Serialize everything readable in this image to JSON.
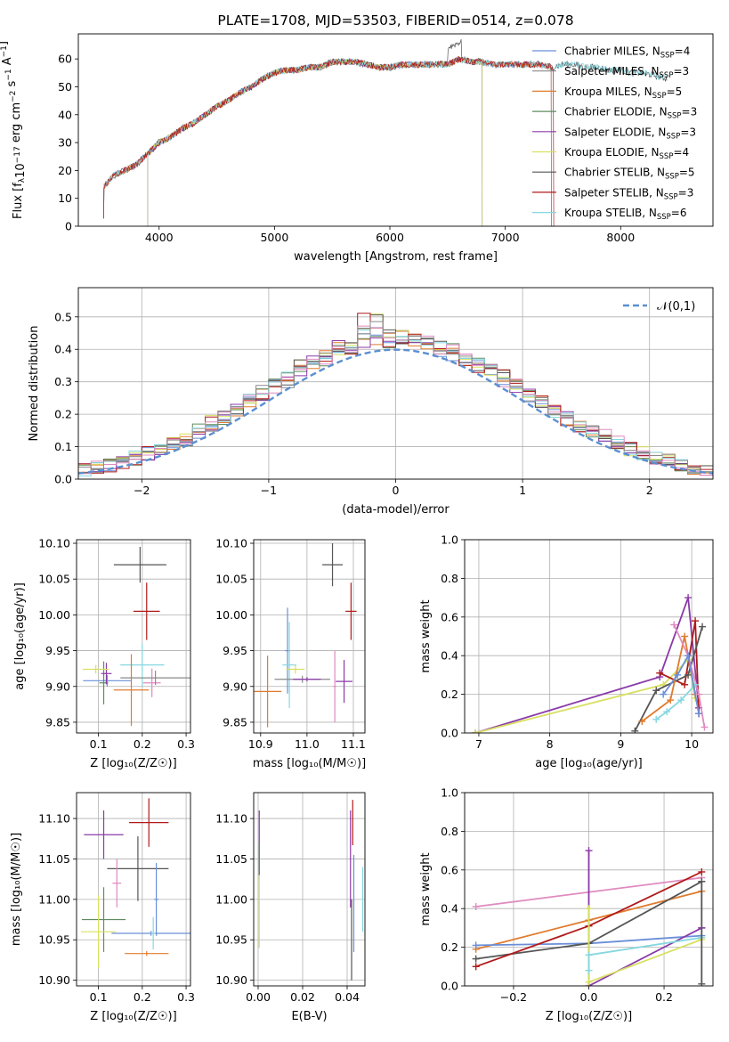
{
  "colors": [
    "#6a8fd8",
    "#8a8a8a",
    "#e07b2e",
    "#5f8c5f",
    "#8a3aa8",
    "#d8e060",
    "#555555",
    "#b01a1a",
    "#86d8e0",
    "#e08ac0"
  ],
  "chart_data": [
    {
      "id": "spectrum",
      "type": "line",
      "title": "PLATE=1708, MJD=53503, FIBERID=0514, z=0.078",
      "xlabel": "wavelength [Angstrom, rest frame]",
      "ylabel_parts": {
        "a": "Flux [f",
        "b": "λ",
        "c": "10",
        "d": "−17",
        "e": " erg cm",
        "f": "−2",
        "g": " s",
        "h": "−1",
        "i": " A",
        "j": "−1",
        "k": "]"
      },
      "xlim": [
        3300,
        8800
      ],
      "ylim": [
        0,
        69
      ],
      "xticks": [
        4000,
        5000,
        6000,
        7000,
        8000
      ],
      "yticks": [
        0,
        10,
        20,
        30,
        40,
        50,
        60
      ],
      "legend_position": "upper right",
      "grid": false,
      "continuum": {
        "x": [
          3520,
          3600,
          3700,
          3800,
          3900,
          4000,
          4100,
          4200,
          4300,
          4400,
          4500,
          4600,
          4700,
          4800,
          4900,
          5000,
          5100,
          5200,
          5300,
          5400,
          5500,
          5600,
          5700,
          5800,
          5900,
          6000,
          6100,
          6200,
          6300,
          6400,
          6500,
          6600,
          6700,
          6800,
          6900,
          7000,
          7100,
          7200,
          7300,
          7400,
          7500,
          7600,
          7700,
          7800,
          7900,
          8000,
          8100,
          8200,
          8300,
          8400
        ],
        "y": [
          14,
          18,
          20,
          22,
          26,
          30,
          32,
          35,
          37,
          40,
          43,
          45,
          48,
          50,
          53,
          55,
          56,
          56,
          57,
          57,
          59,
          59,
          59,
          58,
          57,
          57,
          58,
          58,
          58,
          58,
          58,
          60,
          59,
          59,
          58,
          58,
          58,
          58,
          58,
          57,
          58,
          58,
          57,
          57,
          56,
          56,
          55,
          55,
          54,
          53
        ]
      },
      "series": [
        {
          "name": "Chabrier MILES",
          "nssp": "4",
          "xstart": 3520,
          "xend": 7400,
          "noise": 2.2
        },
        {
          "name": "Salpeter MILES",
          "nssp": "3",
          "xstart": 3520,
          "xend": 7400,
          "noise": 2.2
        },
        {
          "name": "Kroupa MILES",
          "nssp": "5",
          "xstart": 3520,
          "xend": 7400,
          "noise": 2.2
        },
        {
          "name": "Chabrier ELODIE",
          "nssp": "3",
          "xstart": 3900,
          "xend": 6800,
          "noise": 2.0
        },
        {
          "name": "Salpeter ELODIE",
          "nssp": "3",
          "xstart": 3900,
          "xend": 6800,
          "noise": 2.0
        },
        {
          "name": "Kroupa ELODIE",
          "nssp": "4",
          "xstart": 3900,
          "xend": 6800,
          "noise": 2.0
        },
        {
          "name": "Chabrier STELIB",
          "nssp": "5",
          "xstart": 3520,
          "xend": 8400,
          "noise": 2.6
        },
        {
          "name": "Salpeter STELIB",
          "nssp": "3",
          "xstart": 3520,
          "xend": 7420,
          "noise": 2.4
        },
        {
          "name": "Kroupa STELIB",
          "nssp": "6",
          "xstart": 3520,
          "xend": 8400,
          "noise": 2.4
        }
      ]
    },
    {
      "id": "residuals",
      "type": "step",
      "xlabel": "(data-model)/error",
      "ylabel": "Normed distribution",
      "xlim": [
        -2.5,
        2.5
      ],
      "ylim": [
        0,
        0.59
      ],
      "xticks": [
        -2,
        -1,
        0,
        1,
        2
      ],
      "yticks": [
        0.0,
        0.1,
        0.2,
        0.3,
        0.4,
        0.5
      ],
      "grid": true,
      "reference": {
        "name": "𝒩(0,1)",
        "color": "#5b8fd0",
        "style": "dashed"
      },
      "legend_position": "upper right",
      "bin_width": 0.1,
      "series_count": 10
    },
    {
      "id": "age_vs_Z",
      "type": "errorbar",
      "xlabel": "Z [log₁₀(Z/Z☉)]",
      "ylabel": "age  [log₁₀(age/yr)]",
      "xlim": [
        0.05,
        0.31
      ],
      "ylim": [
        9.835,
        10.105
      ],
      "xticks": [
        0.1,
        0.2,
        0.3
      ],
      "yticks": [
        9.85,
        9.9,
        9.95,
        10.0,
        10.05,
        10.1
      ],
      "grid": true,
      "points": [
        {
          "x": 0.12,
          "y": 9.908,
          "xerr": 0.055,
          "yerr": 0.008,
          "c": 0
        },
        {
          "x": 0.2,
          "y": 9.93,
          "xerr": 0.05,
          "yerr": 0.03,
          "c": 8
        },
        {
          "x": 0.175,
          "y": 9.895,
          "xerr": 0.04,
          "yerr": 0.05,
          "c": 2
        },
        {
          "x": 0.112,
          "y": 9.905,
          "xerr": 0.01,
          "yerr": 0.03,
          "c": 3
        },
        {
          "x": 0.118,
          "y": 9.918,
          "xerr": 0.012,
          "yerr": 0.015,
          "c": 4
        },
        {
          "x": 0.094,
          "y": 9.924,
          "xerr": 0.03,
          "yerr": 0.006,
          "c": 5
        },
        {
          "x": 0.195,
          "y": 10.07,
          "xerr": 0.06,
          "yerr": 0.025,
          "c": 6
        },
        {
          "x": 0.21,
          "y": 10.005,
          "xerr": 0.03,
          "yerr": 0.04,
          "c": 7
        },
        {
          "x": 0.222,
          "y": 9.905,
          "xerr": 0.02,
          "yerr": 0.02,
          "c": 9
        },
        {
          "x": 0.23,
          "y": 9.912,
          "xerr": 0.08,
          "yerr": 0.01,
          "c": 1
        }
      ]
    },
    {
      "id": "age_vs_mass",
      "type": "errorbar",
      "xlabel": "mass [log₁₀(M/M☉)]",
      "xlim": [
        10.885,
        11.125
      ],
      "ylim": [
        9.835,
        10.105
      ],
      "xticks": [
        10.9,
        11.0,
        11.1
      ],
      "yticks": [
        9.85,
        9.9,
        9.95,
        10.0,
        10.05,
        10.1
      ],
      "grid": true,
      "points": [
        {
          "x": 10.958,
          "y": 9.95,
          "xerr": 0.005,
          "yerr": 0.06,
          "c": 0
        },
        {
          "x": 10.915,
          "y": 9.893,
          "xerr": 0.03,
          "yerr": 0.05,
          "c": 2
        },
        {
          "x": 10.962,
          "y": 9.93,
          "xerr": 0.015,
          "yerr": 0.06,
          "c": 8
        },
        {
          "x": 10.99,
          "y": 9.91,
          "xerr": 0.06,
          "yerr": 0.005,
          "c": 1
        },
        {
          "x": 11.0,
          "y": 9.91,
          "xerr": 0.03,
          "yerr": 0.003,
          "c": 4
        },
        {
          "x": 10.975,
          "y": 9.924,
          "xerr": 0.02,
          "yerr": 0.006,
          "c": 5
        },
        {
          "x": 11.055,
          "y": 10.07,
          "xerr": 0.022,
          "yerr": 0.03,
          "c": 6
        },
        {
          "x": 11.095,
          "y": 10.005,
          "xerr": 0.012,
          "yerr": 0.04,
          "c": 7
        },
        {
          "x": 11.08,
          "y": 9.907,
          "xerr": 0.018,
          "yerr": 0.03,
          "c": 4
        },
        {
          "x": 11.06,
          "y": 9.9,
          "xerr": 0.003,
          "yerr": 0.05,
          "c": 9
        }
      ]
    },
    {
      "id": "mass_weight_vs_age",
      "type": "line",
      "xlabel": "age  [log₁₀(age/yr)]",
      "ylabel": "mass weight",
      "xlim": [
        6.8,
        10.3
      ],
      "ylim": [
        0,
        1.0
      ],
      "xticks": [
        7,
        8,
        9,
        10
      ],
      "yticks": [
        0.0,
        0.2,
        0.4,
        0.6,
        0.8,
        1.0
      ],
      "grid": true,
      "series": [
        {
          "c": 4,
          "x": [
            6.95,
            9.55,
            9.95,
            10.1
          ],
          "y": [
            0.0,
            0.29,
            0.7,
            0.13
          ]
        },
        {
          "c": 5,
          "x": [
            6.95,
            9.6,
            9.95,
            10.05
          ],
          "y": [
            0.0,
            0.25,
            0.38,
            0.18
          ]
        },
        {
          "c": 7,
          "x": [
            9.55,
            9.9,
            10.05,
            10.1
          ],
          "y": [
            0.31,
            0.25,
            0.58,
            0.1
          ]
        },
        {
          "c": 6,
          "x": [
            9.2,
            9.5,
            9.95,
            10.15
          ],
          "y": [
            0.01,
            0.22,
            0.3,
            0.55
          ]
        },
        {
          "c": 2,
          "x": [
            9.3,
            9.7,
            9.9,
            10.05
          ],
          "y": [
            0.06,
            0.17,
            0.5,
            0.2
          ]
        },
        {
          "c": 9,
          "x": [
            9.75,
            9.95,
            10.1,
            10.18
          ],
          "y": [
            0.56,
            0.4,
            0.2,
            0.03
          ]
        },
        {
          "c": 8,
          "x": [
            9.5,
            9.65,
            9.85,
            10.05
          ],
          "y": [
            0.07,
            0.11,
            0.17,
            0.25
          ]
        },
        {
          "c": 0,
          "x": [
            9.6,
            9.8,
            9.95,
            10.1
          ],
          "y": [
            0.2,
            0.3,
            0.4,
            0.1
          ]
        }
      ]
    },
    {
      "id": "mass_vs_Z",
      "type": "errorbar",
      "xlabel": "Z [log₁₀(Z/Z☉)]",
      "ylabel": "mass [log₁₀(M/M☉)]",
      "xlim": [
        0.05,
        0.31
      ],
      "ylim": [
        10.893,
        11.132
      ],
      "xticks": [
        0.1,
        0.2,
        0.3
      ],
      "yticks": [
        10.9,
        10.95,
        11.0,
        11.05,
        11.1
      ],
      "grid": true,
      "points": [
        {
          "x": 0.22,
          "y": 10.958,
          "xerr": 0.09,
          "yerr": 0.003,
          "c": 0
        },
        {
          "x": 0.225,
          "y": 10.958,
          "xerr": 0.005,
          "yerr": 0.02,
          "c": 8
        },
        {
          "x": 0.21,
          "y": 10.933,
          "xerr": 0.05,
          "yerr": 0.003,
          "c": 2
        },
        {
          "x": 0.112,
          "y": 10.975,
          "xerr": 0.05,
          "yerr": 0.04,
          "c": 3
        },
        {
          "x": 0.112,
          "y": 11.08,
          "xerr": 0.045,
          "yerr": 0.03,
          "c": 4
        },
        {
          "x": 0.1,
          "y": 10.96,
          "xerr": 0.04,
          "yerr": 0.045,
          "c": 5
        },
        {
          "x": 0.19,
          "y": 11.038,
          "xerr": 0.07,
          "yerr": 0.04,
          "c": 6
        },
        {
          "x": 0.215,
          "y": 11.095,
          "xerr": 0.045,
          "yerr": 0.03,
          "c": 7
        },
        {
          "x": 0.232,
          "y": 11.0,
          "xerr": 0.005,
          "yerr": 0.045,
          "c": 0
        },
        {
          "x": 0.142,
          "y": 11.02,
          "xerr": 0.01,
          "yerr": 0.03,
          "c": 9
        }
      ]
    },
    {
      "id": "mass_vs_EBV",
      "type": "errorbar",
      "xlabel": "E(B-V)",
      "xlim": [
        -0.002,
        0.048
      ],
      "ylim": [
        10.893,
        11.132
      ],
      "xticks": [
        0.0,
        0.02,
        0.04
      ],
      "yticks": [
        10.9,
        10.95,
        11.0,
        11.05,
        11.1
      ],
      "grid": true,
      "points": [
        {
          "x": 0.0005,
          "y": 11.07,
          "xerr": 0.0,
          "yerr": 0.04,
          "c": 4
        },
        {
          "x": 0.0005,
          "y": 10.985,
          "xerr": 0.0,
          "yerr": 0.045,
          "c": 5
        },
        {
          "x": 0.0005,
          "y": 11.05,
          "xerr": 0.0,
          "yerr": 0.02,
          "c": 3
        },
        {
          "x": 0.0425,
          "y": 11.095,
          "xerr": 0.0,
          "yerr": 0.028,
          "c": 7
        },
        {
          "x": 0.0415,
          "y": 11.05,
          "xerr": 0.0,
          "yerr": 0.06,
          "c": 4
        },
        {
          "x": 0.042,
          "y": 10.95,
          "xerr": 0.0,
          "yerr": 0.05,
          "c": 6
        },
        {
          "x": 0.043,
          "y": 10.995,
          "xerr": 0.0,
          "yerr": 0.06,
          "c": 0
        },
        {
          "x": 0.047,
          "y": 11.0,
          "xerr": 0.0,
          "yerr": 0.04,
          "c": 8
        }
      ]
    },
    {
      "id": "mass_weight_vs_Z",
      "type": "line",
      "xlabel": "Z [log₁₀(Z/Z☉)]",
      "ylabel": "mass weight",
      "xlim": [
        -0.33,
        0.33
      ],
      "ylim": [
        0,
        1.0
      ],
      "xticks": [
        -0.2,
        0.0,
        0.2
      ],
      "yticks": [
        0.0,
        0.2,
        0.4,
        0.6,
        0.8,
        1.0
      ],
      "grid": true,
      "series": [
        {
          "c": 9,
          "x": [
            -0.3,
            0.3
          ],
          "y": [
            0.41,
            0.56
          ]
        },
        {
          "c": 2,
          "x": [
            -0.3,
            0.0,
            0.3
          ],
          "y": [
            0.19,
            0.34,
            0.49
          ]
        },
        {
          "c": 0,
          "x": [
            -0.3,
            0.0,
            0.3
          ],
          "y": [
            0.21,
            0.22,
            0.26
          ]
        },
        {
          "c": 6,
          "x": [
            -0.3,
            0.0,
            0.3
          ],
          "y": [
            0.14,
            0.22,
            0.54
          ]
        },
        {
          "c": 7,
          "x": [
            -0.3,
            0.0,
            0.3
          ],
          "y": [
            0.1,
            0.31,
            0.59
          ]
        },
        {
          "c": 4,
          "x": [
            0.0,
            0.0,
            0.3,
            0.3
          ],
          "y": [
            0.7,
            0.0,
            0.3,
            0.3
          ]
        },
        {
          "c": 5,
          "x": [
            0.0,
            0.0,
            0.3
          ],
          "y": [
            0.4,
            0.02,
            0.24
          ]
        },
        {
          "c": 8,
          "x": [
            0.0,
            0.0,
            0.3
          ],
          "y": [
            0.08,
            0.16,
            0.25
          ]
        },
        {
          "c": 6,
          "x": [
            0.3,
            0.3
          ],
          "y": [
            0.54,
            0.01
          ]
        }
      ]
    }
  ]
}
